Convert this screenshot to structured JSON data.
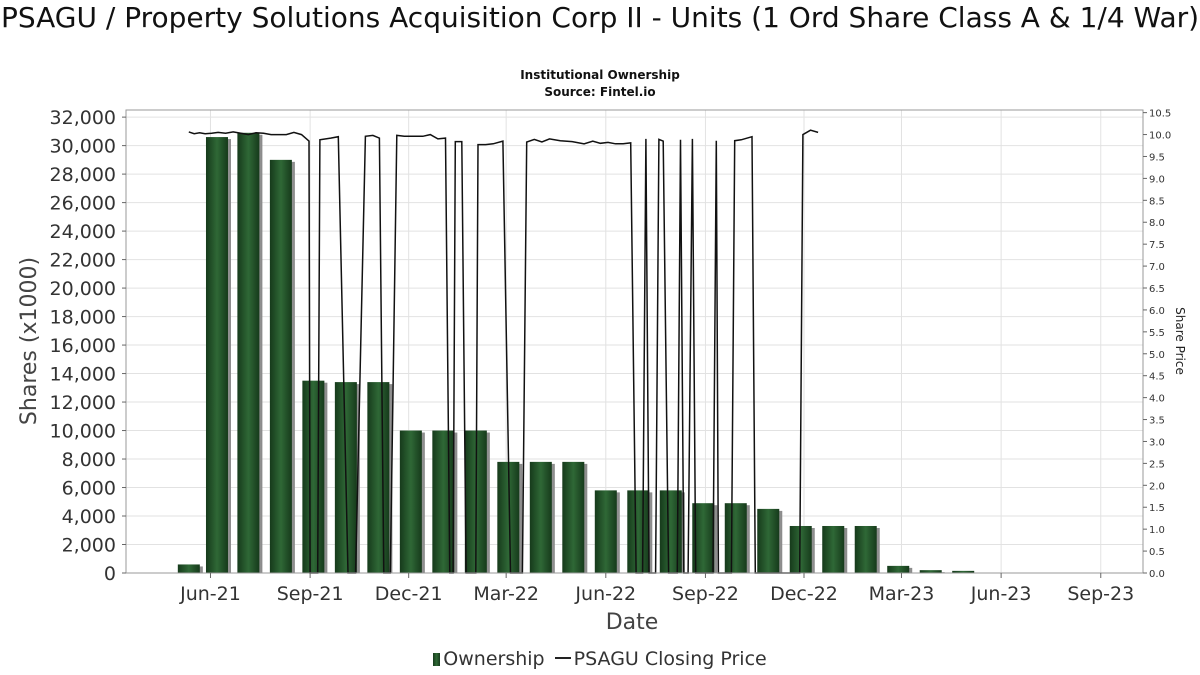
{
  "header": {
    "title": "PSAGU / Property Solutions Acquisition Corp II - Units (1 Ord Share Class A & 1/4 War)",
    "subtitle": "Institutional Ownership",
    "source": "Source: Fintel.io"
  },
  "legend": {
    "ownership": "Ownership",
    "price": "PSAGU Closing Price"
  },
  "colors": {
    "bar": "#1f4a25",
    "bar_shadow": "#9a9a9a",
    "line": "#111111",
    "grid": "#e2e2e2"
  },
  "chart_data": {
    "type": "bar",
    "xlabel": "Date",
    "ylabel": "Shares (x1000)",
    "y2label": "Share Price",
    "ylim": [
      0,
      32500
    ],
    "y2lim": [
      0,
      10.56
    ],
    "yticks": [
      0,
      2000,
      4000,
      6000,
      8000,
      10000,
      12000,
      14000,
      16000,
      18000,
      20000,
      22000,
      24000,
      26000,
      28000,
      30000,
      32000
    ],
    "ytick_labels": [
      "0",
      "2,000",
      "4,000",
      "6,000",
      "8,000",
      "10,000",
      "12,000",
      "14,000",
      "16,000",
      "18,000",
      "20,000",
      "22,000",
      "24,000",
      "26,000",
      "28,000",
      "30,000",
      "32,000"
    ],
    "y2ticks": [
      0.0,
      0.5,
      1.0,
      1.5,
      2.0,
      2.5,
      3.0,
      3.5,
      4.0,
      4.5,
      5.0,
      5.5,
      6.0,
      6.5,
      7.0,
      7.5,
      8.0,
      8.5,
      9.0,
      9.5,
      10.0,
      10.5
    ],
    "y2tick_labels": [
      "0.0",
      "0.5",
      "1.0",
      "1.5",
      "2.0",
      "2.5",
      "3.0",
      "3.5",
      "4.0",
      "4.5",
      "5.0",
      "5.5",
      "6.0",
      "6.5",
      "7.0",
      "7.5",
      "8.0",
      "8.5",
      "9.0",
      "9.5",
      "10.0",
      "10.5"
    ],
    "xlim": [
      "2021-03-15",
      "2023-10-10"
    ],
    "xticks": [
      {
        "date": "2021-06-01",
        "label": "Jun-21"
      },
      {
        "date": "2021-09-01",
        "label": "Sep-21"
      },
      {
        "date": "2021-12-01",
        "label": "Dec-21"
      },
      {
        "date": "2022-03-01",
        "label": "Mar-22"
      },
      {
        "date": "2022-06-01",
        "label": "Jun-22"
      },
      {
        "date": "2022-09-01",
        "label": "Sep-22"
      },
      {
        "date": "2022-12-01",
        "label": "Dec-22"
      },
      {
        "date": "2023-03-01",
        "label": "Mar-23"
      },
      {
        "date": "2023-06-01",
        "label": "Jun-23"
      },
      {
        "date": "2023-09-01",
        "label": "Sep-23"
      }
    ],
    "grid": true,
    "legend_position": "bottom",
    "series": [
      {
        "name": "Ownership",
        "type": "bar",
        "points": [
          {
            "date": "2021-05-12",
            "value": 600
          },
          {
            "date": "2021-06-07",
            "value": 30600
          },
          {
            "date": "2021-07-06",
            "value": 30900
          },
          {
            "date": "2021-08-05",
            "value": 29000
          },
          {
            "date": "2021-09-04",
            "value": 13500
          },
          {
            "date": "2021-10-04",
            "value": 13400
          },
          {
            "date": "2021-11-03",
            "value": 13400
          },
          {
            "date": "2021-12-03",
            "value": 10000
          },
          {
            "date": "2022-01-02",
            "value": 10000
          },
          {
            "date": "2022-02-01",
            "value": 10000
          },
          {
            "date": "2022-03-03",
            "value": 7800
          },
          {
            "date": "2022-04-02",
            "value": 7800
          },
          {
            "date": "2022-05-02",
            "value": 7800
          },
          {
            "date": "2022-06-01",
            "value": 5800
          },
          {
            "date": "2022-07-01",
            "value": 5800
          },
          {
            "date": "2022-07-31",
            "value": 5800
          },
          {
            "date": "2022-08-30",
            "value": 4900
          },
          {
            "date": "2022-09-29",
            "value": 4900
          },
          {
            "date": "2022-10-29",
            "value": 4500
          },
          {
            "date": "2022-11-28",
            "value": 3300
          },
          {
            "date": "2022-12-28",
            "value": 3300
          },
          {
            "date": "2023-01-27",
            "value": 3300
          },
          {
            "date": "2023-02-26",
            "value": 500
          },
          {
            "date": "2023-03-28",
            "value": 200
          },
          {
            "date": "2023-04-27",
            "value": 150
          }
        ]
      },
      {
        "name": "PSAGU Closing Price",
        "type": "line",
        "points": [
          {
            "date": "2021-05-12",
            "value": 10.06
          },
          {
            "date": "2021-05-17",
            "value": 10.02
          },
          {
            "date": "2021-05-22",
            "value": 10.04
          },
          {
            "date": "2021-05-27",
            "value": 10.02
          },
          {
            "date": "2021-06-02",
            "value": 10.03
          },
          {
            "date": "2021-06-08",
            "value": 10.05
          },
          {
            "date": "2021-06-15",
            "value": 10.03
          },
          {
            "date": "2021-06-22",
            "value": 10.06
          },
          {
            "date": "2021-06-29",
            "value": 10.03
          },
          {
            "date": "2021-07-06",
            "value": 10.0
          },
          {
            "date": "2021-07-13",
            "value": 10.04
          },
          {
            "date": "2021-07-20",
            "value": 10.03
          },
          {
            "date": "2021-07-27",
            "value": 10.0
          },
          {
            "date": "2021-08-03",
            "value": 10.0
          },
          {
            "date": "2021-08-10",
            "value": 10.0
          },
          {
            "date": "2021-08-17",
            "value": 10.05
          },
          {
            "date": "2021-08-24",
            "value": 10.0
          },
          {
            "date": "2021-08-31",
            "value": 9.85
          },
          {
            "date": "2021-09-01",
            "value": 0.0
          },
          {
            "date": "2021-09-08",
            "value": 0.0
          },
          {
            "date": "2021-09-10",
            "value": 9.88
          },
          {
            "date": "2021-09-20",
            "value": 9.92
          },
          {
            "date": "2021-09-27",
            "value": 9.95
          },
          {
            "date": "2021-10-06",
            "value": 0.0
          },
          {
            "date": "2021-10-13",
            "value": 0.0
          },
          {
            "date": "2021-10-22",
            "value": 9.96
          },
          {
            "date": "2021-10-29",
            "value": 9.98
          },
          {
            "date": "2021-11-04",
            "value": 9.92
          },
          {
            "date": "2021-11-08",
            "value": 0.0
          },
          {
            "date": "2021-11-14",
            "value": 0.0
          },
          {
            "date": "2021-11-20",
            "value": 9.98
          },
          {
            "date": "2021-11-27",
            "value": 9.96
          },
          {
            "date": "2021-12-07",
            "value": 9.96
          },
          {
            "date": "2021-12-14",
            "value": 9.96
          },
          {
            "date": "2021-12-21",
            "value": 10.0
          },
          {
            "date": "2021-12-28",
            "value": 9.9
          },
          {
            "date": "2022-01-04",
            "value": 9.92
          },
          {
            "date": "2022-01-08",
            "value": 0.0
          },
          {
            "date": "2022-01-11",
            "value": 0.0
          },
          {
            "date": "2022-01-13",
            "value": 9.84
          },
          {
            "date": "2022-01-19",
            "value": 9.84
          },
          {
            "date": "2022-01-23",
            "value": 0.0
          },
          {
            "date": "2022-02-01",
            "value": 0.0
          },
          {
            "date": "2022-02-03",
            "value": 9.77
          },
          {
            "date": "2022-02-10",
            "value": 9.77
          },
          {
            "date": "2022-02-17",
            "value": 9.79
          },
          {
            "date": "2022-02-26",
            "value": 9.85
          },
          {
            "date": "2022-03-05",
            "value": 0.0
          },
          {
            "date": "2022-03-16",
            "value": 0.0
          },
          {
            "date": "2022-03-20",
            "value": 9.83
          },
          {
            "date": "2022-03-27",
            "value": 9.89
          },
          {
            "date": "2022-04-03",
            "value": 9.83
          },
          {
            "date": "2022-04-10",
            "value": 9.9
          },
          {
            "date": "2022-04-20",
            "value": 9.86
          },
          {
            "date": "2022-05-01",
            "value": 9.84
          },
          {
            "date": "2022-05-12",
            "value": 9.79
          },
          {
            "date": "2022-05-20",
            "value": 9.85
          },
          {
            "date": "2022-05-27",
            "value": 9.8
          },
          {
            "date": "2022-06-03",
            "value": 9.82
          },
          {
            "date": "2022-06-10",
            "value": 9.79
          },
          {
            "date": "2022-06-17",
            "value": 9.79
          },
          {
            "date": "2022-06-24",
            "value": 9.81
          },
          {
            "date": "2022-06-29",
            "value": 0.0
          },
          {
            "date": "2022-07-05",
            "value": 0.0
          },
          {
            "date": "2022-07-08",
            "value": 9.9
          },
          {
            "date": "2022-07-11",
            "value": 0.0
          },
          {
            "date": "2022-07-17",
            "value": 0.0
          },
          {
            "date": "2022-07-20",
            "value": 9.89
          },
          {
            "date": "2022-07-24",
            "value": 9.85
          },
          {
            "date": "2022-07-29",
            "value": 0.0
          },
          {
            "date": "2022-08-06",
            "value": 0.0
          },
          {
            "date": "2022-08-09",
            "value": 9.88
          },
          {
            "date": "2022-08-12",
            "value": 0.0
          },
          {
            "date": "2022-08-16",
            "value": 0.0
          },
          {
            "date": "2022-08-20",
            "value": 9.9
          },
          {
            "date": "2022-08-23",
            "value": 0.0
          },
          {
            "date": "2022-09-08",
            "value": 0.0
          },
          {
            "date": "2022-09-11",
            "value": 9.86
          },
          {
            "date": "2022-09-13",
            "value": 0.0
          },
          {
            "date": "2022-09-25",
            "value": 0.0
          },
          {
            "date": "2022-09-28",
            "value": 9.86
          },
          {
            "date": "2022-10-04",
            "value": 9.88
          },
          {
            "date": "2022-10-14",
            "value": 9.95
          },
          {
            "date": "2022-10-17",
            "value": 0.0
          },
          {
            "date": "2022-11-27",
            "value": 0.0
          },
          {
            "date": "2022-11-30",
            "value": 10.0
          },
          {
            "date": "2022-12-07",
            "value": 10.1
          },
          {
            "date": "2022-12-14",
            "value": 10.05
          }
        ]
      }
    ]
  }
}
